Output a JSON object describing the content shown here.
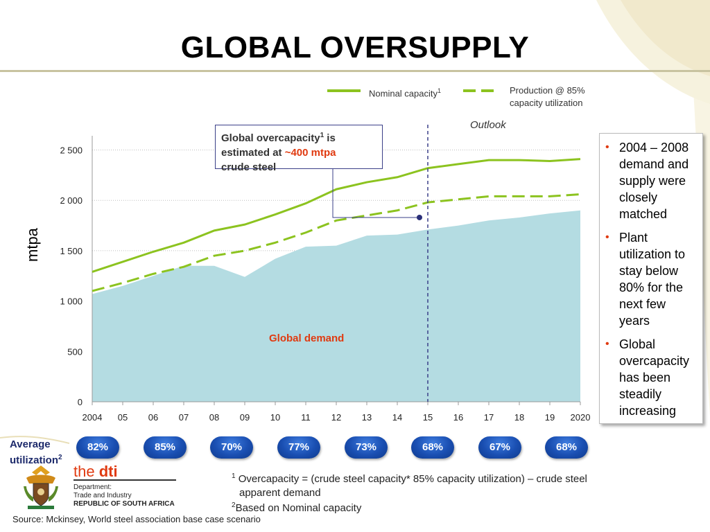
{
  "title": "GLOBAL OVERSUPPLY",
  "legend": {
    "nominal": "Nominal capacity",
    "nominal_sup": "1",
    "production_line1": "Production @ 85%",
    "production_line2": "capacity utilization"
  },
  "outlook": "Outlook",
  "callout": {
    "line1": "Global overcapacity",
    "line1_sup": "1",
    "line1_end": " is",
    "line2_pre": "estimated at ",
    "line2_highlight": "~400 mtpa",
    "line3": "crude steel"
  },
  "demand_label": "Global demand",
  "colors": {
    "capacity": "#8cc31f",
    "production": "#8cc31f",
    "demand_fill": "#b4dce2",
    "accent": "#e03a10",
    "pill": "#1a4fb2"
  },
  "chart_data": {
    "type": "area",
    "x": [
      2004,
      2005,
      2006,
      2007,
      2008,
      2009,
      2010,
      2011,
      2012,
      2013,
      2014,
      2015,
      2016,
      2017,
      2018,
      2019,
      2020
    ],
    "x_tick_labels": [
      "2004",
      "05",
      "06",
      "07",
      "08",
      "09",
      "10",
      "11",
      "12",
      "13",
      "14",
      "15",
      "16",
      "17",
      "18",
      "19",
      "2020"
    ],
    "y_ticks": [
      0,
      500,
      1000,
      1500,
      2000,
      2500
    ],
    "y_tick_labels": [
      "0",
      "500",
      "1 000",
      "1 500",
      "2 000",
      "2 500"
    ],
    "ylabel": "mtpa",
    "ylim": [
      0,
      2600
    ],
    "outlook_from": 2015,
    "grid": true,
    "series": [
      {
        "name": "Nominal capacity",
        "style": "solid",
        "values": [
          1290,
          1390,
          1490,
          1580,
          1700,
          1760,
          1860,
          1970,
          2110,
          2180,
          2230,
          2320,
          2360,
          2400,
          2400,
          2390,
          2410
        ]
      },
      {
        "name": "Production @ 85% capacity utilization",
        "style": "dashed",
        "values": [
          1100,
          1180,
          1270,
          1340,
          1450,
          1500,
          1580,
          1680,
          1800,
          1850,
          1900,
          1980,
          2010,
          2040,
          2040,
          2040,
          2060
        ]
      },
      {
        "name": "Global demand",
        "style": "area",
        "values": [
          1070,
          1150,
          1250,
          1350,
          1350,
          1240,
          1420,
          1540,
          1550,
          1650,
          1660,
          1710,
          1750,
          1800,
          1830,
          1870,
          1900
        ]
      }
    ],
    "callout_pointer": {
      "x": 2015,
      "y": 1830
    }
  },
  "utilization": {
    "label": "Average",
    "label2": "utilization",
    "label2_sup": "2",
    "values": [
      "82%",
      "85%",
      "70%",
      "77%",
      "73%",
      "68%",
      "67%",
      "68%"
    ]
  },
  "bullets": [
    "2004 – 2008 demand and supply were closely matched",
    "Plant utilization to stay below 80% for the next few years",
    "Global overcapacity has been steadily increasing"
  ],
  "logo": {
    "brand_pre": "the ",
    "brand": "dti",
    "dept1": "Department:",
    "dept2": "Trade and Industry",
    "dept3": "REPUBLIC OF SOUTH AFRICA"
  },
  "footnotes": {
    "n1_num": "1",
    "n1_text": "Overcapacity = (crude steel capacity* 85% capacity utilization) – crude steel",
    "n1_text2": "apparent demand",
    "n2_num": "2",
    "n2_text": "Based on Nominal capacity"
  },
  "source": "Source: Mckinsey, World steel association base case scenario"
}
